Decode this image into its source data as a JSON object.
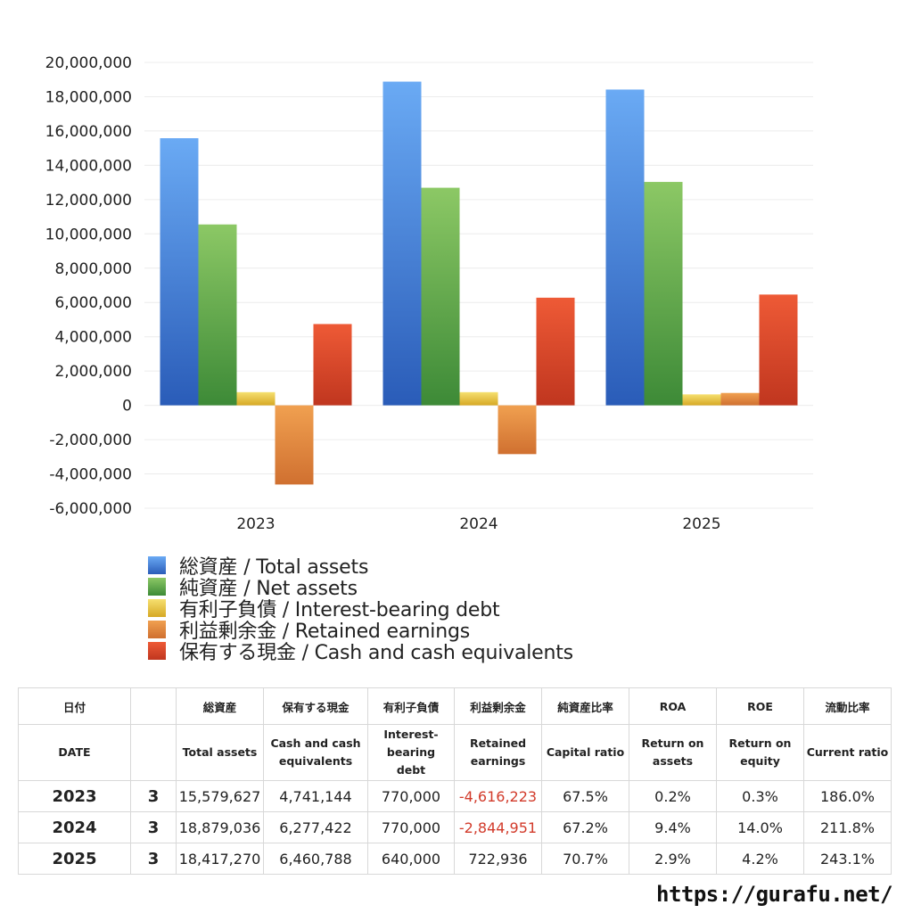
{
  "chart_data": {
    "type": "bar",
    "categories": [
      "2023",
      "2024",
      "2025"
    ],
    "ylim": [
      -6000000,
      20000000
    ],
    "yticks": [
      20000000,
      18000000,
      16000000,
      14000000,
      12000000,
      10000000,
      8000000,
      6000000,
      4000000,
      2000000,
      0,
      -2000000,
      -4000000,
      -6000000
    ],
    "ytick_labels": [
      "20,000,000",
      "18,000,000",
      "16,000,000",
      "14,000,000",
      "12,000,000",
      "10,000,000",
      "8,000,000",
      "6,000,000",
      "4,000,000",
      "2,000,000",
      "0",
      "-2,000,000",
      "-4,000,000",
      "-6,000,000"
    ],
    "grid": true,
    "legend_position": "bottom",
    "series": [
      {
        "name": "総資産 / Total assets",
        "values": [
          15579627,
          18879036,
          18417270
        ],
        "color_top": "#6aaaf4",
        "color_bottom": "#2a5cb8"
      },
      {
        "name": "純資産 / Net assets",
        "values": [
          10550000,
          12690000,
          13030000
        ],
        "color_top": "#8cc865",
        "color_bottom": "#3d8a37"
      },
      {
        "name": "有利子負債 / Interest-bearing debt",
        "values": [
          770000,
          770000,
          640000
        ],
        "color_top": "#f6e070",
        "color_bottom": "#d6a824"
      },
      {
        "name": "利益剰余金 / Retained earnings",
        "values": [
          -4616223,
          -2844951,
          722936
        ],
        "color_top": "#f0a050",
        "color_bottom": "#d07030"
      },
      {
        "name": "保有する現金 /  Cash and cash equivalents",
        "values": [
          4741144,
          6277422,
          6460788
        ],
        "color_top": "#ee5a36",
        "color_bottom": "#c0361f"
      }
    ]
  },
  "table": {
    "headers_ja": [
      "日付",
      "",
      "総資産",
      "保有する現金",
      "有利子負債",
      "利益剰余金",
      "純資産比率",
      "ROA",
      "ROE",
      "流動比率"
    ],
    "headers_en": [
      "DATE",
      "",
      "Total assets",
      "Cash and cash equivalents",
      "Interest-bearing debt",
      "Retained earnings",
      "Capital ratio",
      "Return on assets",
      "Return on equity",
      "Current ratio"
    ],
    "rows": [
      [
        "2023",
        "3",
        "15,579,627",
        "4,741,144",
        "770,000",
        "-4,616,223",
        "67.5%",
        "0.2%",
        "0.3%",
        "186.0%"
      ],
      [
        "2024",
        "3",
        "18,879,036",
        "6,277,422",
        "770,000",
        "-2,844,951",
        "67.2%",
        "9.4%",
        "14.0%",
        "211.8%"
      ],
      [
        "2025",
        "3",
        "18,417,270",
        "6,460,788",
        "640,000",
        "722,936",
        "70.7%",
        "2.9%",
        "4.2%",
        "243.1%"
      ]
    ],
    "negative_color": "#d23b2b"
  },
  "footer": {
    "url": "https://gurafu.net/"
  }
}
